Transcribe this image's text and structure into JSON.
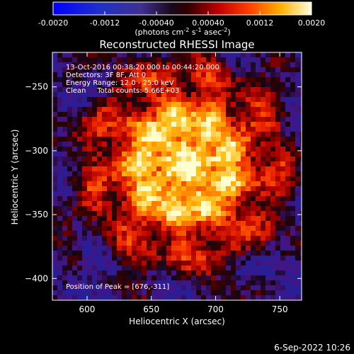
{
  "colorbar": {
    "tick_labels": [
      "-0.0020",
      "-0.0012",
      "-0.00040",
      "0.00040",
      "0.0012",
      "0.0020"
    ],
    "tick_values": [
      -0.002,
      -0.0012,
      -0.0004,
      0.0004,
      0.0012,
      0.002
    ],
    "range": [
      -0.002,
      0.002
    ],
    "unit_main": "(photons cm",
    "unit_exp1": "-2",
    "unit_s": " s",
    "unit_exp2": "-1",
    "unit_asec": " asec",
    "unit_exp3": "-2",
    "unit_close": ")"
  },
  "image": {
    "title": "Reconstructed RHESSI Image",
    "info_lines": [
      "13-Oct-2016 00:38:20.000 to 00:44:20.000",
      "Detectors: 3F 8F, Att 0",
      "Energy Range: 12.0 - 25.0 keV",
      "Clean     Total counts: 5.66E+03"
    ],
    "peak_label": "Position of Peak = [676,-311]",
    "peak": [
      676,
      -311
    ],
    "xlabel": "Heliocentric X (arcsec)",
    "ylabel": "Heliocentric Y (arcsec)",
    "x_ticks": [
      "600",
      "650",
      "700",
      "750"
    ],
    "x_tick_values": [
      600,
      650,
      700,
      750
    ],
    "y_ticks": [
      "−250",
      "−300",
      "−350",
      "−400"
    ],
    "y_tick_values": [
      -250,
      -300,
      -350,
      -400
    ],
    "x_range": [
      573,
      767
    ],
    "y_range": [
      -417,
      -223
    ]
  },
  "timestamp": "6-Sep-2022 10:26"
}
